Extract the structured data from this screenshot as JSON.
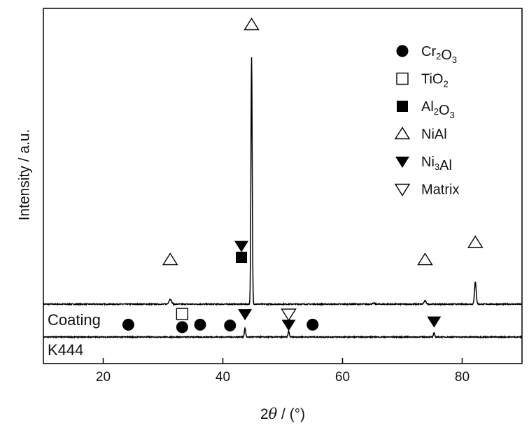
{
  "chart_data": {
    "type": "line",
    "xlabel_prefix": "2",
    "xlabel_symbol": "θ",
    "xlabel_suffix": " / (°)",
    "ylabel": "Intensity / a.u.",
    "xlim": [
      10,
      90
    ],
    "xticks": [
      20,
      40,
      60,
      80
    ],
    "yticks_shown": false,
    "grid": false,
    "legend_position": "top-right",
    "legend": [
      {
        "marker": "filled-circle",
        "parts": [
          "Cr",
          "2",
          "O",
          "3"
        ]
      },
      {
        "marker": "open-square",
        "parts": [
          "TiO",
          "2"
        ]
      },
      {
        "marker": "filled-square",
        "parts": [
          "Al",
          "2",
          "O",
          "3"
        ]
      },
      {
        "marker": "open-triangle-up",
        "parts": [
          "NiAl"
        ]
      },
      {
        "marker": "filled-triangle-down",
        "parts": [
          "Ni",
          "3",
          "Al"
        ]
      },
      {
        "marker": "open-triangle-down",
        "parts": [
          "Matrix"
        ]
      }
    ],
    "series": [
      {
        "name": "Coating",
        "baseline": 1.9,
        "peaks": [
          {
            "x": 31.2,
            "height": 0.3,
            "width": 0.3
          },
          {
            "x": 44.8,
            "height": 15.0,
            "width": 0.15
          },
          {
            "x": 65.2,
            "height": 0.05,
            "width": 0.3
          },
          {
            "x": 73.8,
            "height": 0.2,
            "width": 0.25
          },
          {
            "x": 82.2,
            "height": 1.35,
            "width": 0.2
          }
        ],
        "markers": [
          {
            "x": 31.2,
            "type": "open-triangle-up",
            "level": 2.7
          },
          {
            "x": 43.1,
            "type": "filled-square",
            "level": 2.85
          },
          {
            "x": 43.1,
            "type": "filled-triangle-down",
            "level": 3.55
          },
          {
            "x": 44.8,
            "type": "open-triangle-up",
            "level": 17.0
          },
          {
            "x": 73.8,
            "type": "open-triangle-up",
            "level": 2.7
          },
          {
            "x": 82.2,
            "type": "open-triangle-up",
            "level": 3.75
          }
        ]
      },
      {
        "name": "K444",
        "baseline": 0.0,
        "peaks": [
          {
            "x": 43.7,
            "height": 0.55,
            "width": 0.15
          },
          {
            "x": 51.0,
            "height": 0.35,
            "width": 0.15
          },
          {
            "x": 75.3,
            "height": 0.25,
            "width": 0.15
          }
        ],
        "markers": [
          {
            "x": 24.2,
            "type": "filled-circle",
            "level": 0.75
          },
          {
            "x": 33.2,
            "type": "open-square",
            "level": 1.4
          },
          {
            "x": 33.2,
            "type": "filled-circle",
            "level": 0.6
          },
          {
            "x": 36.2,
            "type": "filled-circle",
            "level": 0.75
          },
          {
            "x": 41.2,
            "type": "filled-circle",
            "level": 0.7
          },
          {
            "x": 43.7,
            "type": "filled-triangle-down",
            "level": 1.4
          },
          {
            "x": 51.0,
            "type": "open-triangle-down",
            "level": 1.4
          },
          {
            "x": 51.0,
            "type": "filled-triangle-down",
            "level": 0.75
          },
          {
            "x": 55.0,
            "type": "filled-circle",
            "level": 0.75
          },
          {
            "x": 75.3,
            "type": "filled-triangle-down",
            "level": 0.95
          }
        ]
      }
    ]
  }
}
